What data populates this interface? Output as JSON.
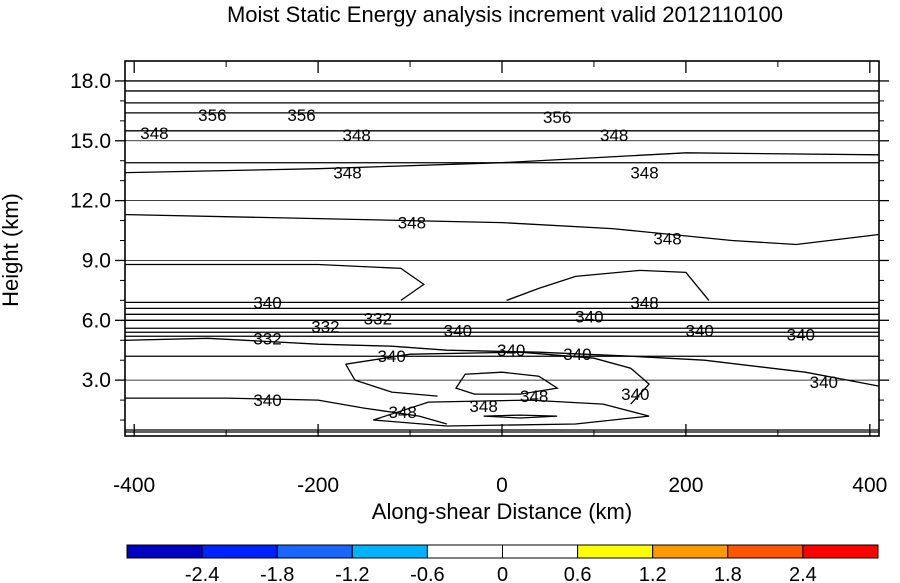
{
  "chart_data": {
    "type": "contour",
    "title": "Moist Static Energy analysis increment valid 2012110100",
    "xlabel": "Along-shear Distance (km)",
    "ylabel": "Height (km)",
    "xlim": [
      -410,
      410
    ],
    "ylim": [
      0.2,
      19.0
    ],
    "x_ticks": [
      -400,
      -200,
      0,
      200,
      400
    ],
    "x_tick_labels": [
      "-400",
      "-200",
      "0",
      "200",
      "400"
    ],
    "y_ticks": [
      3.0,
      6.0,
      9.0,
      12.0,
      15.0,
      18.0
    ],
    "y_tick_labels": [
      "3.0",
      "6.0",
      "9.0",
      "12.0",
      "15.0",
      "18.0"
    ],
    "horizontal_contours_km": [
      18.0,
      17.5,
      16.9,
      16.4,
      15.5,
      13.9,
      6.9,
      6.6,
      6.3,
      6.0,
      5.6,
      5.4,
      5.2,
      4.2,
      0.5,
      0.4
    ],
    "contour_labels": [
      {
        "text": "356",
        "x": -315,
        "y": 16.3
      },
      {
        "text": "356",
        "x": -218,
        "y": 16.3
      },
      {
        "text": "356",
        "x": 60,
        "y": 16.2
      },
      {
        "text": "348",
        "x": -378,
        "y": 15.4
      },
      {
        "text": "348",
        "x": -158,
        "y": 15.3
      },
      {
        "text": "348",
        "x": 122,
        "y": 15.3
      },
      {
        "text": "348",
        "x": -168,
        "y": 13.4
      },
      {
        "text": "348",
        "x": 155,
        "y": 13.4
      },
      {
        "text": "348",
        "x": -98,
        "y": 10.9
      },
      {
        "text": "348",
        "x": 180,
        "y": 10.1
      },
      {
        "text": "340",
        "x": -255,
        "y": 6.9
      },
      {
        "text": "348",
        "x": 155,
        "y": 6.9
      },
      {
        "text": "332",
        "x": -135,
        "y": 6.1
      },
      {
        "text": "332",
        "x": -192,
        "y": 5.7
      },
      {
        "text": "340",
        "x": -48,
        "y": 5.5
      },
      {
        "text": "340",
        "x": 95,
        "y": 6.2
      },
      {
        "text": "340",
        "x": 215,
        "y": 5.5
      },
      {
        "text": "340",
        "x": 325,
        "y": 5.3
      },
      {
        "text": "332",
        "x": -255,
        "y": 5.1
      },
      {
        "text": "340",
        "x": -120,
        "y": 4.2
      },
      {
        "text": "340",
        "x": 10,
        "y": 4.5
      },
      {
        "text": "340",
        "x": 82,
        "y": 4.3
      },
      {
        "text": "340",
        "x": 145,
        "y": 2.3
      },
      {
        "text": "340",
        "x": 350,
        "y": 2.9
      },
      {
        "text": "340",
        "x": -255,
        "y": 2.0
      },
      {
        "text": "348",
        "x": -108,
        "y": 1.4
      },
      {
        "text": "348",
        "x": -20,
        "y": 1.7
      },
      {
        "text": "348",
        "x": 35,
        "y": 2.2
      }
    ],
    "colorbar": {
      "labels": [
        "-2.4",
        "-1.8",
        "-1.2",
        "-0.6",
        "0",
        "0.6",
        "1.2",
        "1.8",
        "2.4"
      ],
      "colors": [
        "#0000c4",
        "#0022ff",
        "#1a66ff",
        "#00b2ff",
        "#ffffff",
        "#ffffff",
        "#ffff00",
        "#ff9900",
        "#ff5500",
        "#ff0000"
      ]
    }
  }
}
